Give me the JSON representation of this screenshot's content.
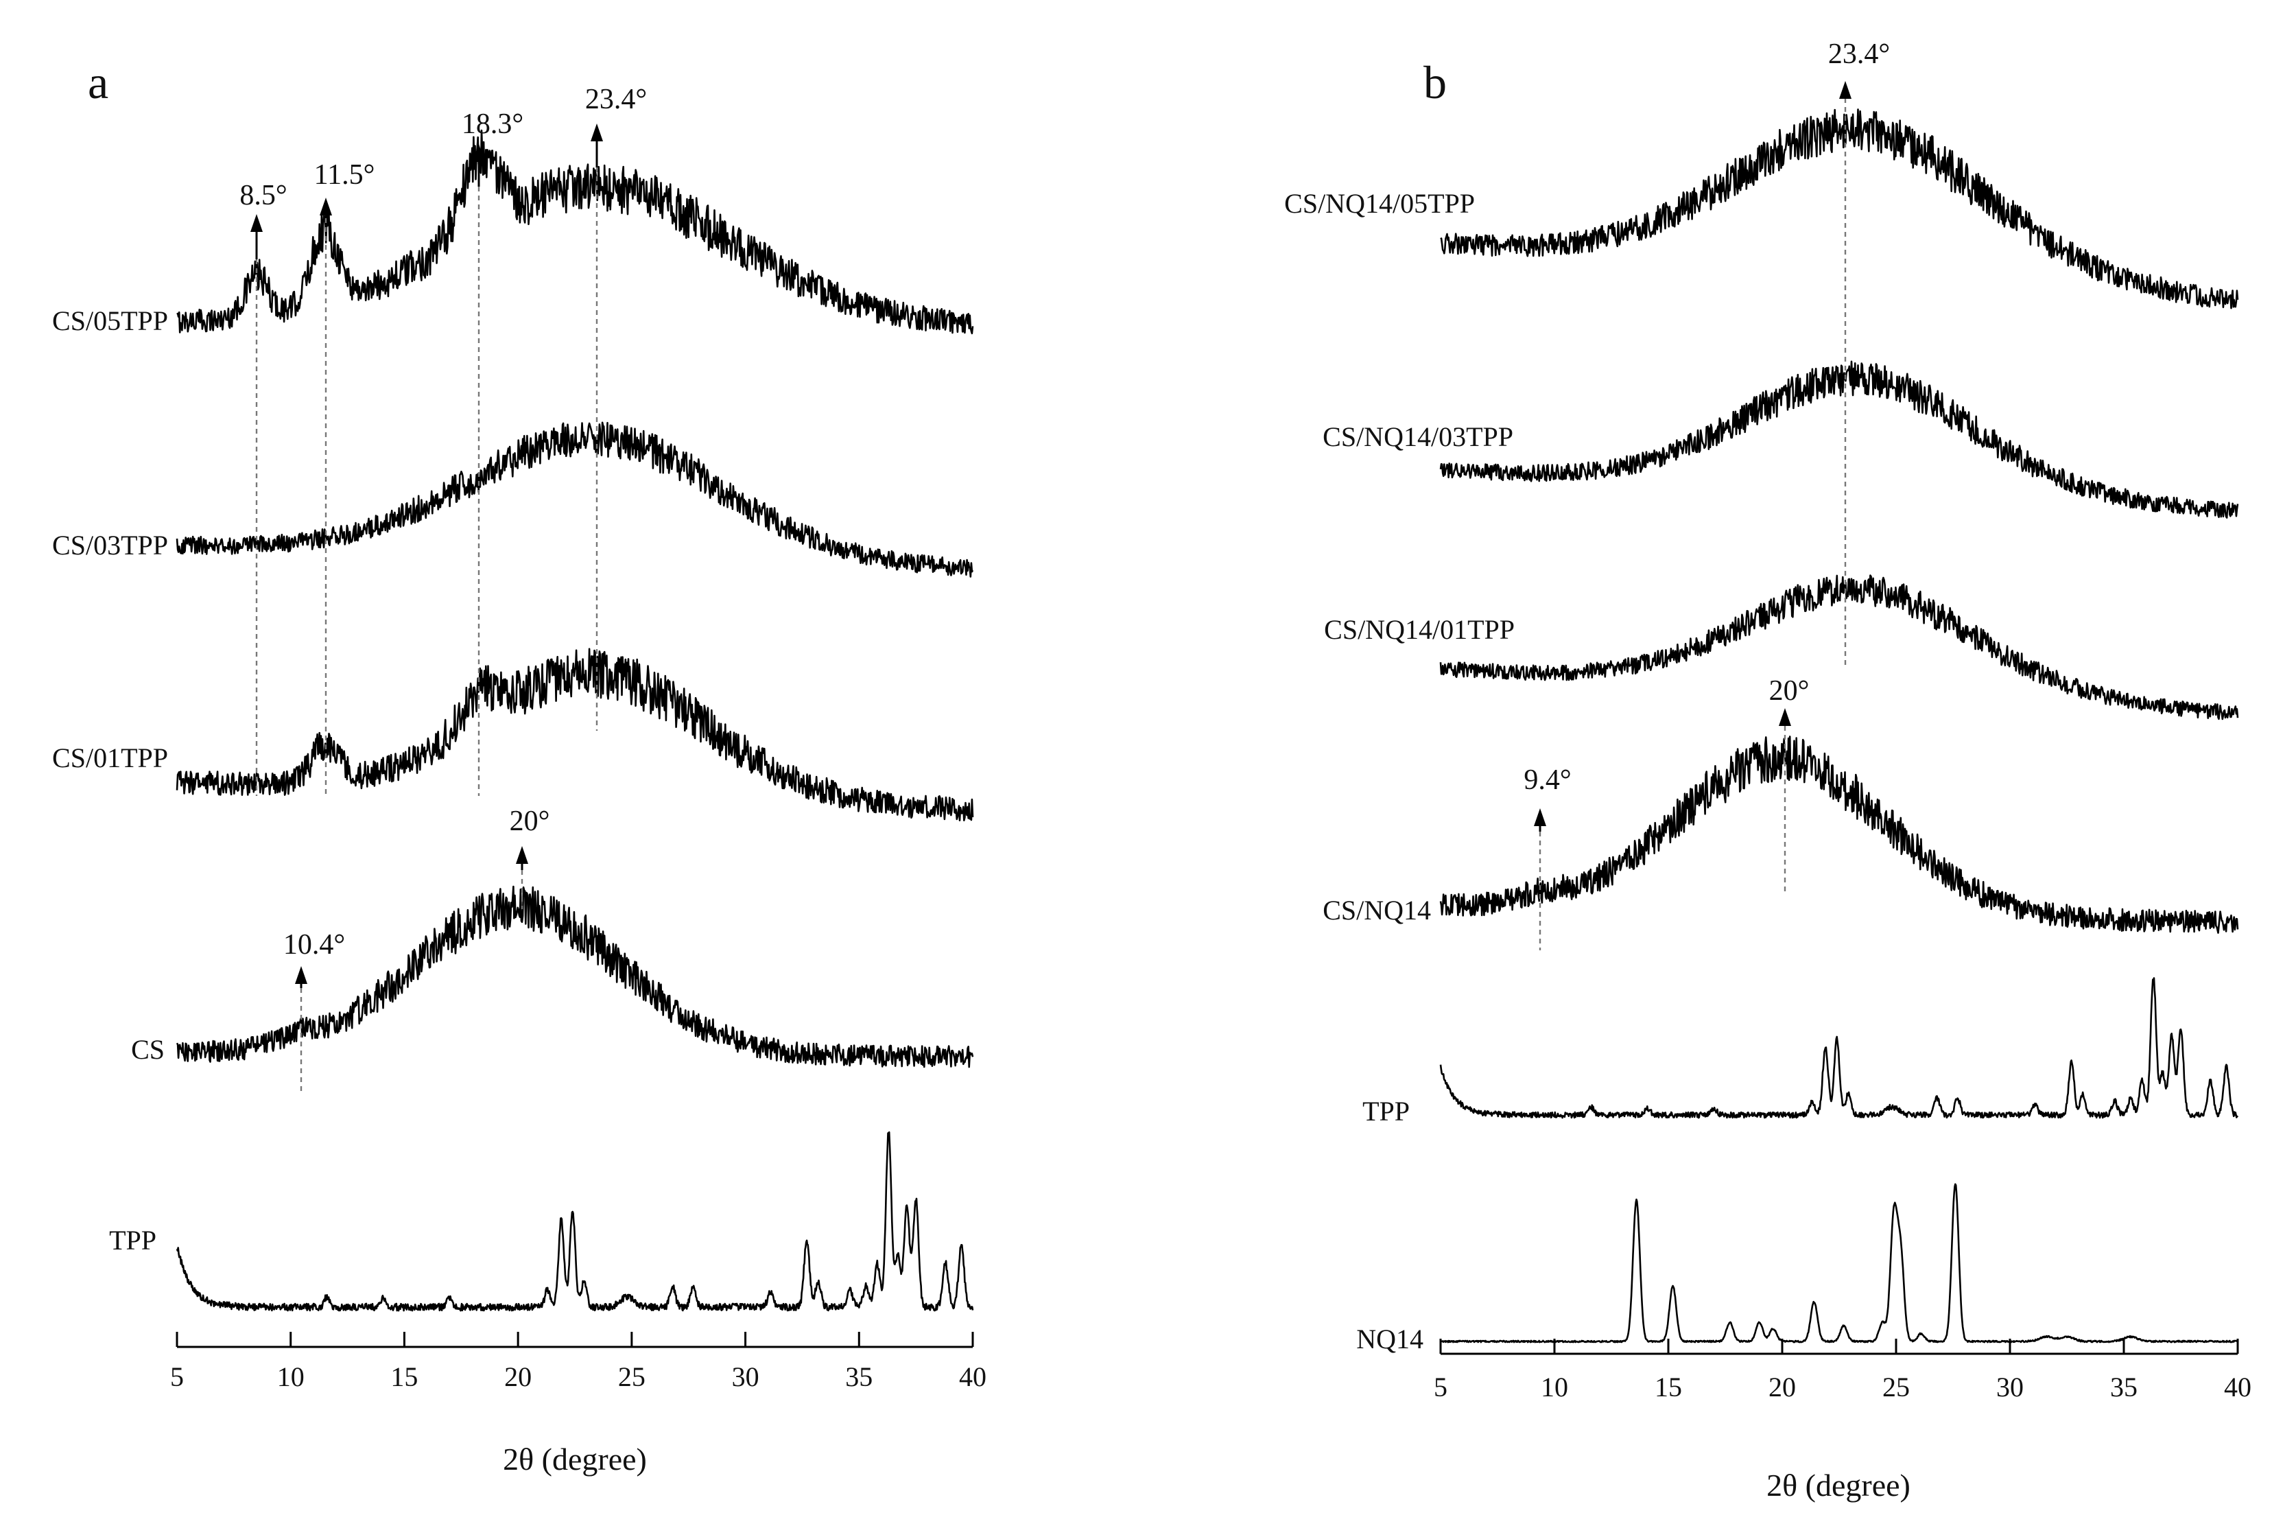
{
  "chart_data": [
    {
      "panel": "a",
      "type": "line",
      "xlabel": "2θ (degree)",
      "xlim": [
        5,
        40
      ],
      "xticks": [
        5,
        10,
        15,
        20,
        25,
        30,
        35,
        40
      ],
      "series": [
        {
          "name": "CS/05TPP",
          "kind": "broad",
          "noise": 0.35,
          "peaks": [
            {
              "x": 23.4,
              "h": 1.0,
              "w": 6.0
            },
            {
              "x": 18.3,
              "h": 0.55,
              "w": 0.8
            },
            {
              "x": 11.5,
              "h": 0.55,
              "w": 0.6
            },
            {
              "x": 8.5,
              "h": 0.3,
              "w": 0.5
            }
          ]
        },
        {
          "name": "CS/03TPP",
          "kind": "broad",
          "noise": 0.3,
          "peaks": [
            {
              "x": 23.4,
              "h": 1.0,
              "w": 5.5
            }
          ]
        },
        {
          "name": "CS/01TPP",
          "kind": "broad",
          "noise": 0.4,
          "peaks": [
            {
              "x": 23.4,
              "h": 1.0,
              "w": 4.8
            },
            {
              "x": 18.3,
              "h": 0.25,
              "w": 0.8
            },
            {
              "x": 11.5,
              "h": 0.3,
              "w": 0.6
            }
          ]
        },
        {
          "name": "CS",
          "kind": "broad",
          "noise": 0.3,
          "peaks": [
            {
              "x": 20.0,
              "h": 1.0,
              "w": 4.5
            },
            {
              "x": 10.4,
              "h": 0.05,
              "w": 1.0
            }
          ]
        },
        {
          "name": "TPP",
          "kind": "crystalline",
          "noise": 0.04,
          "peaks": [
            {
              "x": 11.6,
              "h": 0.06,
              "w": 0.12
            },
            {
              "x": 14.1,
              "h": 0.05,
              "w": 0.12
            },
            {
              "x": 17.0,
              "h": 0.05,
              "w": 0.12
            },
            {
              "x": 21.3,
              "h": 0.1,
              "w": 0.12
            },
            {
              "x": 21.9,
              "h": 0.5,
              "w": 0.12
            },
            {
              "x": 22.4,
              "h": 0.55,
              "w": 0.12
            },
            {
              "x": 22.9,
              "h": 0.15,
              "w": 0.12
            },
            {
              "x": 24.8,
              "h": 0.06,
              "w": 0.3
            },
            {
              "x": 26.8,
              "h": 0.12,
              "w": 0.12
            },
            {
              "x": 27.7,
              "h": 0.12,
              "w": 0.12
            },
            {
              "x": 31.1,
              "h": 0.08,
              "w": 0.12
            },
            {
              "x": 32.7,
              "h": 0.38,
              "w": 0.12
            },
            {
              "x": 33.2,
              "h": 0.15,
              "w": 0.12
            },
            {
              "x": 34.6,
              "h": 0.1,
              "w": 0.12
            },
            {
              "x": 35.3,
              "h": 0.12,
              "w": 0.12
            },
            {
              "x": 35.8,
              "h": 0.25,
              "w": 0.12
            },
            {
              "x": 36.3,
              "h": 1.0,
              "w": 0.12
            },
            {
              "x": 36.7,
              "h": 0.3,
              "w": 0.12
            },
            {
              "x": 37.1,
              "h": 0.58,
              "w": 0.12
            },
            {
              "x": 37.5,
              "h": 0.62,
              "w": 0.12
            },
            {
              "x": 38.8,
              "h": 0.25,
              "w": 0.12
            },
            {
              "x": 39.5,
              "h": 0.35,
              "w": 0.12
            }
          ]
        }
      ],
      "annotations": [
        {
          "label": "8.5°",
          "x": 8.5
        },
        {
          "label": "11.5°",
          "x": 11.5
        },
        {
          "label": "18.3°",
          "x": 18.3
        },
        {
          "label": "23.4°",
          "x": 23.4
        },
        {
          "label": "20°",
          "x": 20
        },
        {
          "label": "10.4°",
          "x": 10.4
        }
      ]
    },
    {
      "panel": "b",
      "type": "line",
      "xlabel": "2θ (degree)",
      "xlim": [
        5,
        40
      ],
      "xticks": [
        5,
        10,
        15,
        20,
        25,
        30,
        35,
        40
      ],
      "series": [
        {
          "name": "CS/NQ14/05TPP",
          "kind": "broad",
          "noise": 0.3,
          "peaks": [
            {
              "x": 23.4,
              "h": 1.0,
              "w": 5.5
            }
          ]
        },
        {
          "name": "CS/NQ14/03TPP",
          "kind": "broad",
          "noise": 0.3,
          "peaks": [
            {
              "x": 23.4,
              "h": 1.0,
              "w": 5.0
            }
          ]
        },
        {
          "name": "CS/NQ14/01TPP",
          "kind": "broad",
          "noise": 0.3,
          "peaks": [
            {
              "x": 23.4,
              "h": 1.0,
              "w": 5.0
            }
          ]
        },
        {
          "name": "CS/NQ14",
          "kind": "broad",
          "noise": 0.3,
          "peaks": [
            {
              "x": 20.0,
              "h": 1.0,
              "w": 4.5
            },
            {
              "x": 9.4,
              "h": 0.05,
              "w": 1.0
            }
          ]
        },
        {
          "name": "TPP",
          "kind": "crystalline",
          "noise": 0.04,
          "peaks": [
            {
              "x": 11.6,
              "h": 0.06,
              "w": 0.12
            },
            {
              "x": 14.1,
              "h": 0.05,
              "w": 0.12
            },
            {
              "x": 17.0,
              "h": 0.05,
              "w": 0.12
            },
            {
              "x": 21.3,
              "h": 0.1,
              "w": 0.12
            },
            {
              "x": 21.9,
              "h": 0.5,
              "w": 0.12
            },
            {
              "x": 22.4,
              "h": 0.55,
              "w": 0.12
            },
            {
              "x": 22.9,
              "h": 0.15,
              "w": 0.12
            },
            {
              "x": 24.8,
              "h": 0.06,
              "w": 0.3
            },
            {
              "x": 26.8,
              "h": 0.12,
              "w": 0.12
            },
            {
              "x": 27.7,
              "h": 0.12,
              "w": 0.12
            },
            {
              "x": 31.1,
              "h": 0.08,
              "w": 0.12
            },
            {
              "x": 32.7,
              "h": 0.38,
              "w": 0.12
            },
            {
              "x": 33.2,
              "h": 0.15,
              "w": 0.12
            },
            {
              "x": 34.6,
              "h": 0.1,
              "w": 0.12
            },
            {
              "x": 35.3,
              "h": 0.12,
              "w": 0.12
            },
            {
              "x": 35.8,
              "h": 0.25,
              "w": 0.12
            },
            {
              "x": 36.3,
              "h": 1.0,
              "w": 0.12
            },
            {
              "x": 36.7,
              "h": 0.3,
              "w": 0.12
            },
            {
              "x": 37.1,
              "h": 0.58,
              "w": 0.12
            },
            {
              "x": 37.5,
              "h": 0.62,
              "w": 0.12
            },
            {
              "x": 38.8,
              "h": 0.25,
              "w": 0.12
            },
            {
              "x": 39.5,
              "h": 0.35,
              "w": 0.12
            }
          ]
        },
        {
          "name": "NQ14",
          "kind": "crystalline",
          "noise": 0.01,
          "peaks": [
            {
              "x": 13.6,
              "h": 0.9,
              "w": 0.15
            },
            {
              "x": 15.2,
              "h": 0.35,
              "w": 0.15
            },
            {
              "x": 17.7,
              "h": 0.12,
              "w": 0.15
            },
            {
              "x": 19.0,
              "h": 0.12,
              "w": 0.15
            },
            {
              "x": 19.6,
              "h": 0.08,
              "w": 0.15
            },
            {
              "x": 21.4,
              "h": 0.25,
              "w": 0.15
            },
            {
              "x": 22.7,
              "h": 0.1,
              "w": 0.15
            },
            {
              "x": 24.4,
              "h": 0.12,
              "w": 0.15
            },
            {
              "x": 24.9,
              "h": 0.78,
              "w": 0.15
            },
            {
              "x": 25.2,
              "h": 0.55,
              "w": 0.15
            },
            {
              "x": 26.1,
              "h": 0.05,
              "w": 0.15
            },
            {
              "x": 27.6,
              "h": 1.0,
              "w": 0.15
            },
            {
              "x": 31.6,
              "h": 0.03,
              "w": 0.3
            },
            {
              "x": 32.5,
              "h": 0.03,
              "w": 0.3
            },
            {
              "x": 35.3,
              "h": 0.03,
              "w": 0.3
            }
          ]
        }
      ],
      "annotations": [
        {
          "label": "23.4°",
          "x": 23.4
        },
        {
          "label": "20°",
          "x": 20
        },
        {
          "label": "9.4°",
          "x": 9.4
        }
      ]
    }
  ]
}
